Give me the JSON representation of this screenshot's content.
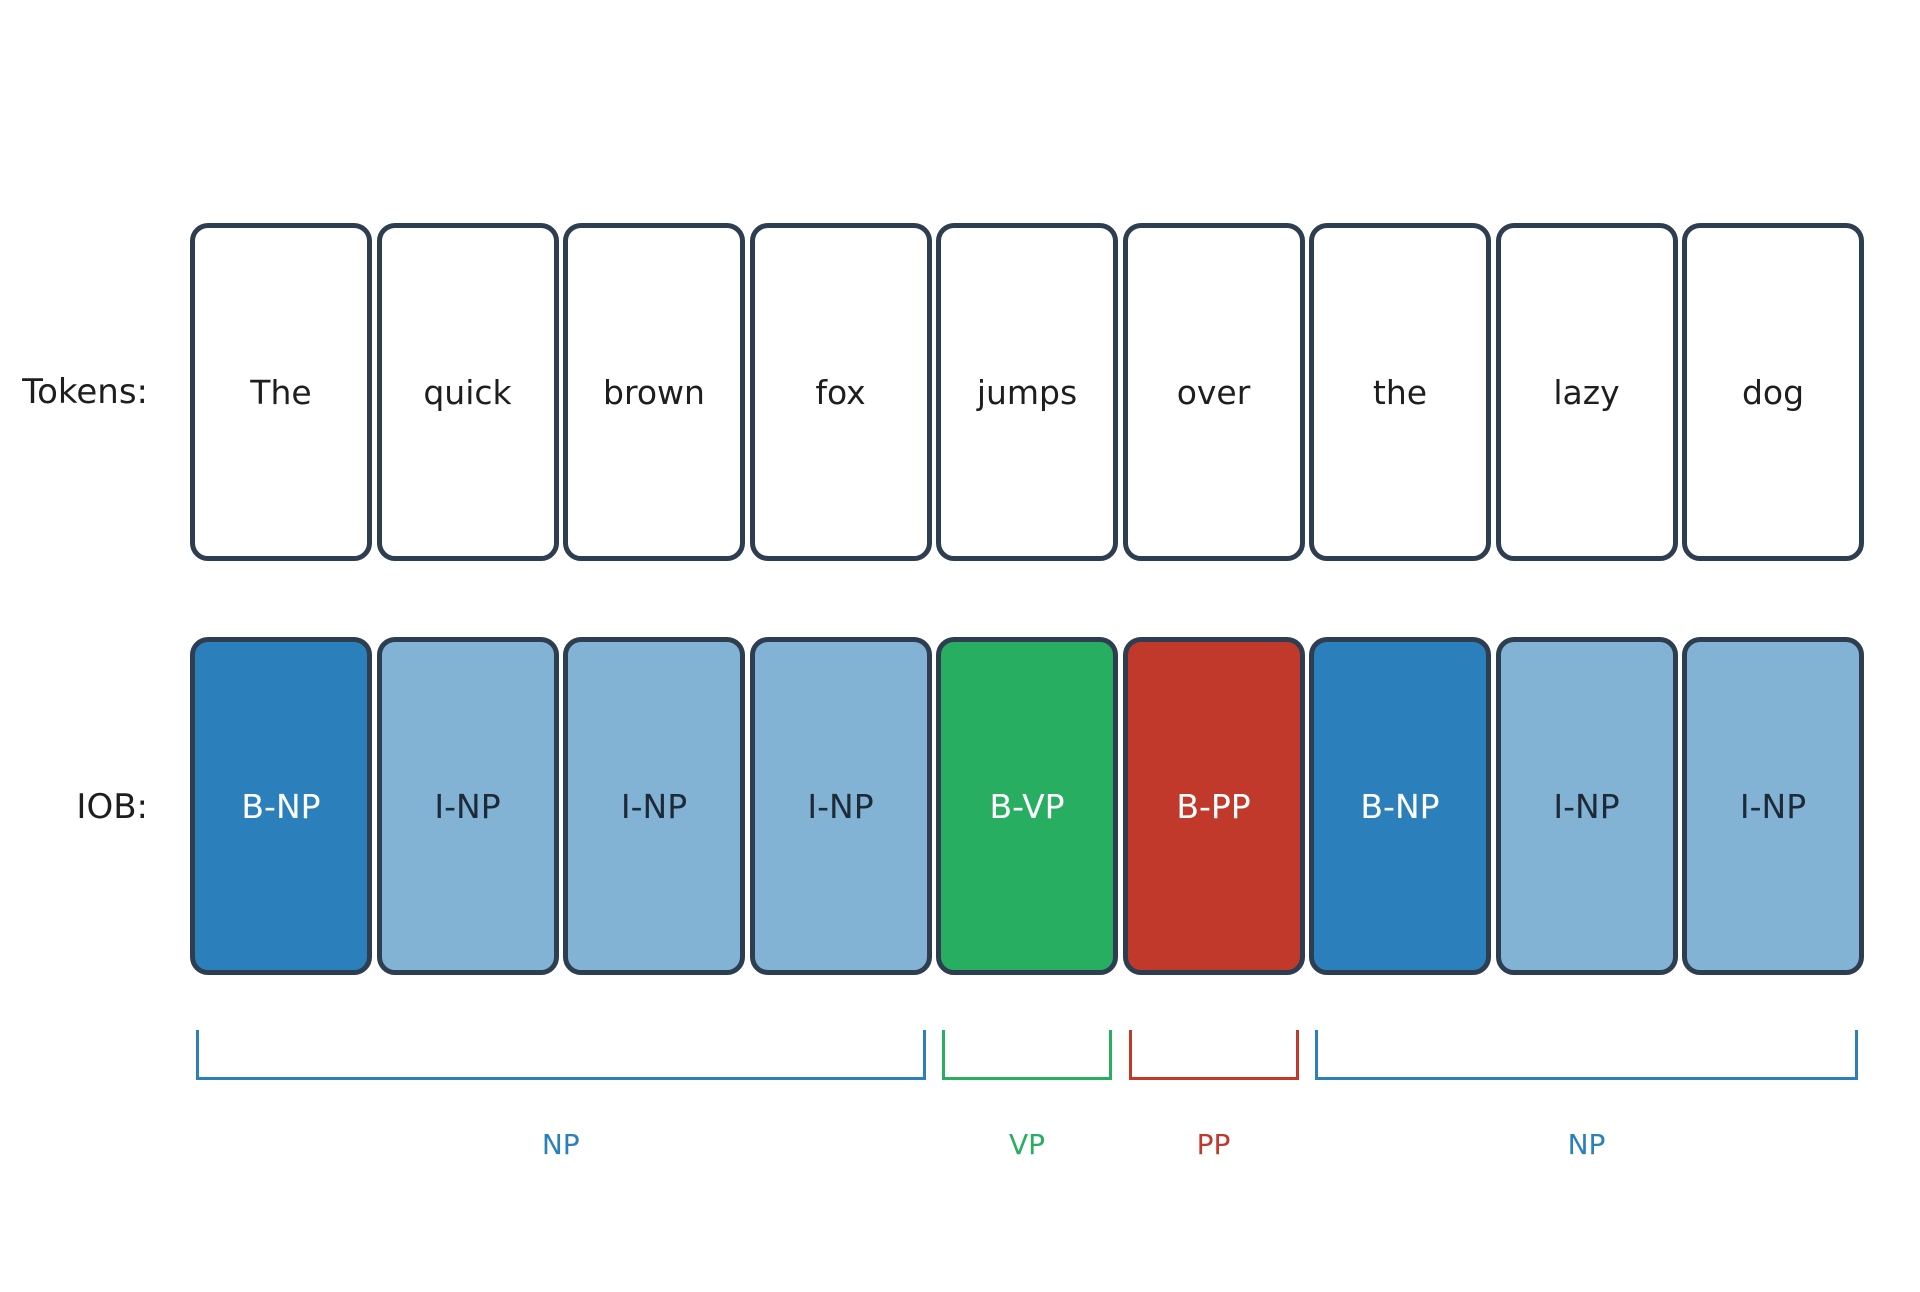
{
  "row_labels": {
    "tokens": "Tokens:",
    "iob": "IOB:"
  },
  "tokens": [
    "The",
    "quick",
    "brown",
    "fox",
    "jumps",
    "over",
    "the",
    "lazy",
    "dog"
  ],
  "tags": [
    {
      "label": "B-NP",
      "fill": "#2b7fba",
      "text_color": "#ffffff"
    },
    {
      "label": "I-NP",
      "fill": "#82b3d5",
      "text_color": "#1e2a38"
    },
    {
      "label": "I-NP",
      "fill": "#82b3d5",
      "text_color": "#1e2a38"
    },
    {
      "label": "I-NP",
      "fill": "#82b3d5",
      "text_color": "#1e2a38"
    },
    {
      "label": "B-VP",
      "fill": "#27ae60",
      "text_color": "#ffffff"
    },
    {
      "label": "B-PP",
      "fill": "#c0392b",
      "text_color": "#ffffff"
    },
    {
      "label": "B-NP",
      "fill": "#2b7fba",
      "text_color": "#ffffff"
    },
    {
      "label": "I-NP",
      "fill": "#82b3d5",
      "text_color": "#1e2a38"
    },
    {
      "label": "I-NP",
      "fill": "#82b3d5",
      "text_color": "#1e2a38"
    }
  ],
  "chunks": [
    {
      "label": "NP",
      "start": 0,
      "end": 3,
      "color": "#2b7fba"
    },
    {
      "label": "VP",
      "start": 4,
      "end": 4,
      "color": "#27ae60"
    },
    {
      "label": "PP",
      "start": 5,
      "end": 5,
      "color": "#c0392b"
    },
    {
      "label": "NP",
      "start": 6,
      "end": 8,
      "color": "#2b7fba"
    }
  ],
  "colors": {
    "box_border": "#2c3e50",
    "text": "#1e1e1e"
  }
}
